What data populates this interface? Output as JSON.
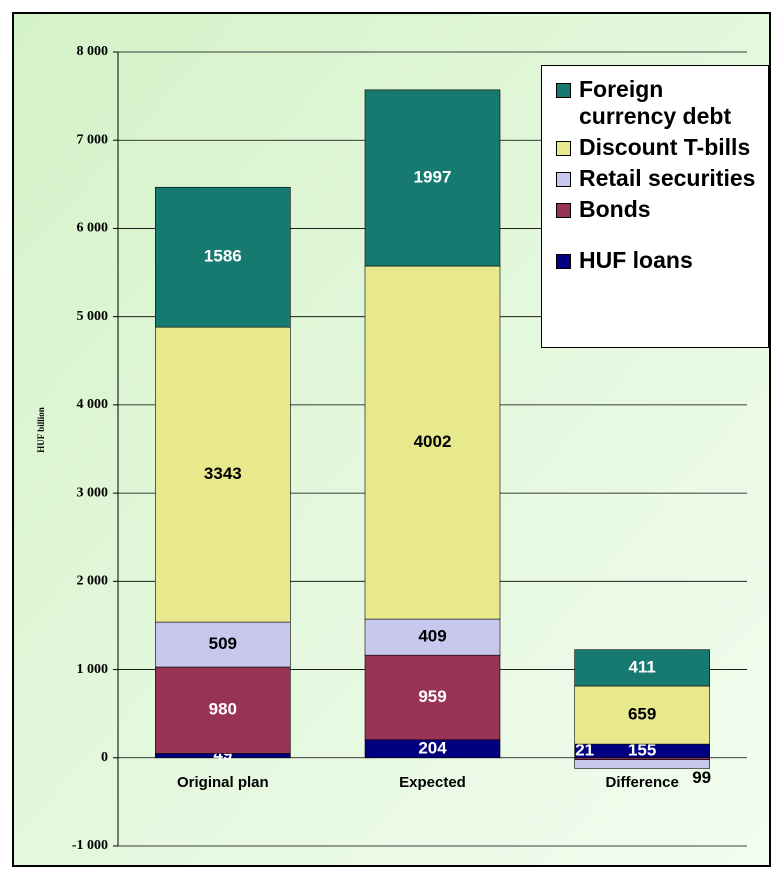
{
  "chart_data": {
    "type": "stacked_bar",
    "y_label": "HUF billion",
    "categories": [
      "Original plan",
      "Expected",
      "Difference"
    ],
    "series": [
      {
        "name": "HUF loans",
        "color": "#000080",
        "values": [
          49,
          204,
          155
        ]
      },
      {
        "name": "Bonds",
        "color": "#993355",
        "values": [
          980,
          959,
          -21
        ],
        "value_labels": [
          "980",
          "959",
          "21"
        ]
      },
      {
        "name": "Retail securities",
        "color": "#c8c8ee",
        "values": [
          509,
          409,
          -99
        ],
        "value_labels": [
          "509",
          "409",
          "99"
        ]
      },
      {
        "name": "Discount T-bills",
        "color": "#e8e88c",
        "values": [
          3343,
          4002,
          659
        ]
      },
      {
        "name": "Foreign currency debt",
        "color": "#177a70",
        "values": [
          1586,
          1997,
          411
        ]
      }
    ],
    "ylim": [
      -1000,
      8000
    ],
    "yticks": [
      {
        "value": -1000,
        "label": "-1 000"
      },
      0,
      {
        "value": 1000,
        "label": "1 000"
      },
      {
        "value": 2000,
        "label": "2 000"
      },
      {
        "value": 3000,
        "label": "3 000"
      },
      {
        "value": 4000,
        "label": "4 000"
      },
      {
        "value": 5000,
        "label": "5 000"
      },
      {
        "value": 6000,
        "label": "6 000"
      },
      {
        "value": 7000,
        "label": "7 000"
      },
      {
        "value": 8000,
        "label": "8 000"
      }
    ],
    "grid": true,
    "legend": "top-right"
  }
}
